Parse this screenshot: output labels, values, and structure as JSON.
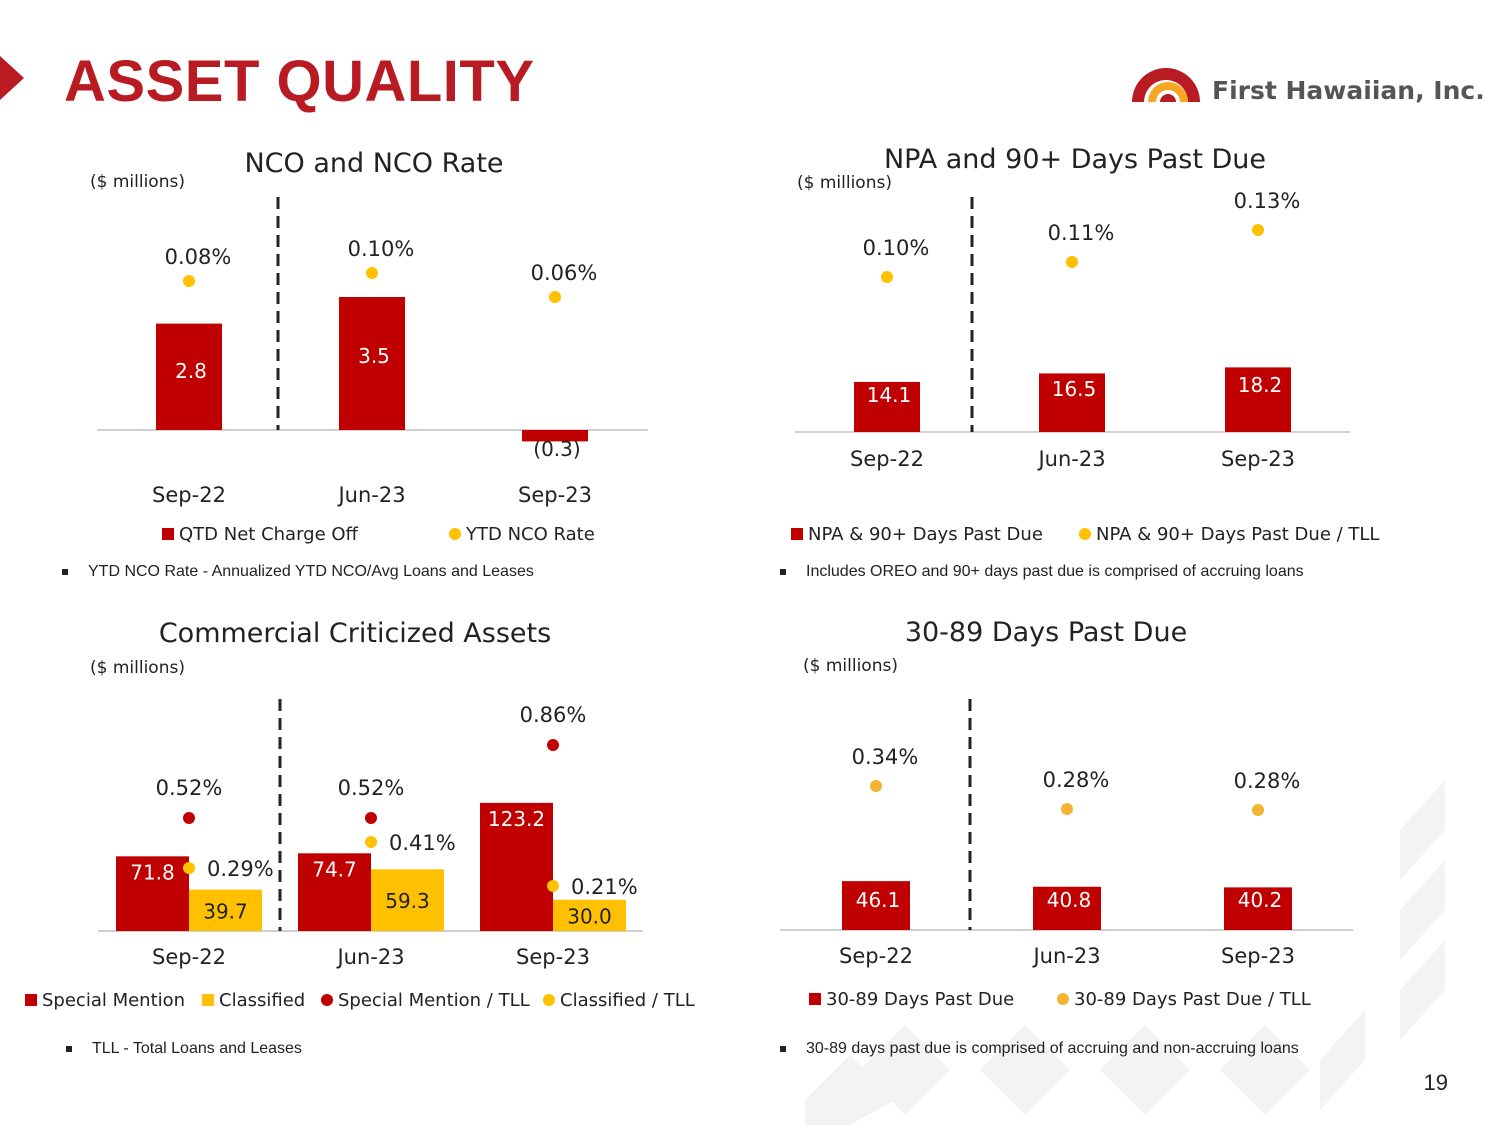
{
  "page": {
    "title": "ASSET QUALITY",
    "logo_text": "First Hawaiian, Inc.",
    "page_number": "19",
    "colors": {
      "brand_red": "#b81c22",
      "bar_red": "#c00000",
      "gold": "#ffc000",
      "orange_dot": "#f5b335",
      "text": "#222222"
    }
  },
  "notes": {
    "nco": "YTD NCO Rate - Annualized  YTD NCO/Avg Loans and Leases",
    "npa": "Includes OREO and 90+ days past due is comprised of accruing loans",
    "cca": "TLL  -  Total Loans and Leases",
    "dpd": "30-89 days past due is comprised of accruing and non-accruing loans"
  },
  "chart_data": [
    {
      "id": "nco",
      "type": "bar",
      "title": "NCO and NCO Rate",
      "unit_label": "($ millions)",
      "categories": [
        "Sep-22",
        "Jun-23",
        "Sep-23"
      ],
      "series": [
        {
          "name": "QTD Net Charge Off",
          "kind": "bar",
          "color": "#c00000",
          "values": [
            2.8,
            3.5,
            -0.3
          ],
          "labels": [
            "2.8",
            "3.5",
            "(0.3)"
          ]
        },
        {
          "name": "YTD NCO Rate",
          "kind": "dot",
          "color": "#ffc000",
          "values": [
            0.08,
            0.1,
            0.06
          ],
          "labels": [
            "0.08%",
            "0.10%",
            "0.06%"
          ]
        }
      ]
    },
    {
      "id": "npa",
      "type": "bar",
      "title": "NPA and 90+ Days Past Due",
      "unit_label": "($ millions)",
      "categories": [
        "Sep-22",
        "Jun-23",
        "Sep-23"
      ],
      "series": [
        {
          "name": "NPA & 90+ Days Past Due",
          "kind": "bar",
          "color": "#c00000",
          "values": [
            14.1,
            16.5,
            18.2
          ],
          "labels": [
            "14.1",
            "16.5",
            "18.2"
          ]
        },
        {
          "name": "NPA & 90+ Days Past Due / TLL",
          "kind": "dot",
          "color": "#ffc000",
          "values": [
            0.1,
            0.11,
            0.13
          ],
          "labels": [
            "0.10%",
            "0.11%",
            "0.13%"
          ]
        }
      ]
    },
    {
      "id": "cca",
      "type": "bar",
      "title": "Commercial Criticized Assets",
      "unit_label": "($ millions)",
      "categories": [
        "Sep-22",
        "Jun-23",
        "Sep-23"
      ],
      "series": [
        {
          "name": "Special Mention",
          "kind": "bar",
          "color": "#c00000",
          "values": [
            71.8,
            74.7,
            123.2
          ],
          "labels": [
            "71.8",
            "74.7",
            "123.2"
          ]
        },
        {
          "name": "Classified",
          "kind": "bar",
          "color": "#ffc000",
          "values": [
            39.7,
            59.3,
            30.0
          ],
          "labels": [
            "39.7",
            "59.3",
            "30.0"
          ]
        },
        {
          "name": "Special Mention / TLL",
          "kind": "dot",
          "color": "#c00000",
          "values": [
            0.52,
            0.52,
            0.86
          ],
          "labels": [
            "0.52%",
            "0.52%",
            "0.86%"
          ]
        },
        {
          "name": "Classified / TLL",
          "kind": "dot",
          "color": "#ffc000",
          "values": [
            0.29,
            0.41,
            0.21
          ],
          "labels": [
            "0.29%",
            "0.41%",
            "0.21%"
          ]
        }
      ]
    },
    {
      "id": "dpd",
      "type": "bar",
      "title": "30-89 Days Past Due",
      "unit_label": "($ millions)",
      "categories": [
        "Sep-22",
        "Jun-23",
        "Sep-23"
      ],
      "series": [
        {
          "name": "30-89 Days Past Due",
          "kind": "bar",
          "color": "#c00000",
          "values": [
            46.1,
            40.8,
            40.2
          ],
          "labels": [
            "46.1",
            "40.8",
            "40.2"
          ]
        },
        {
          "name": "30-89 Days Past Due / TLL",
          "kind": "dot",
          "color": "#f5b335",
          "values": [
            0.34,
            0.28,
            0.28
          ],
          "labels": [
            "0.34%",
            "0.28%",
            "0.28%"
          ]
        }
      ]
    }
  ]
}
